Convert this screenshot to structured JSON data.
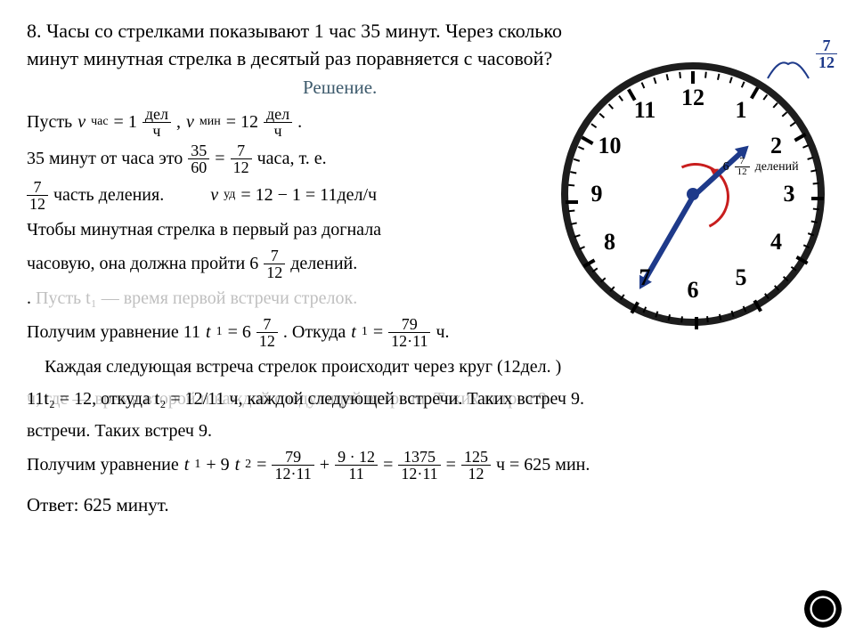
{
  "problem": {
    "number": "8.",
    "text_line1": "Часы со стрелками показывают 1 час 35 минут. Через сколько",
    "text_line2": "минут минутная стрелка в десятый раз поравняется с часовой?"
  },
  "solution_title": "Решение.",
  "lines": {
    "l1a": "Пусть ",
    "l1_vchas": "v",
    "l1_chas_sub": "час",
    "l1_eq1": " = 1",
    "l1_unit1_n": "дел",
    "l1_unit1_d": "ч",
    "l1_comma": " , ",
    "l1_vmin": "v",
    "l1_min_sub": "мин",
    "l1_eq2": " = 12",
    "l1_unit2_n": "дел",
    "l1_unit2_d": "ч",
    "l1_dot": " .",
    "l2a": "35 минут от часа это ",
    "l2_f1n": "35",
    "l2_f1d": "60",
    "l2_eq": " = ",
    "l2_f2n": "7",
    "l2_f2d": "12",
    "l2b": " часа, т. е.",
    "l3_fn": "7",
    "l3_fd": "12",
    "l3b": " часть деления.",
    "l3c": "v",
    "l3c_sub": "уд",
    "l3c_eq": " = 12 − 1 = 11дел/ч",
    "l4": "Чтобы минутная стрелка в первый раз догнала",
    "l5a": "часовую, она должна пройти 6",
    "l5_fn": "7",
    "l5_fd": "12",
    "l5b": " делений.",
    "l6_ghost": "Пусть t₁ — время первой встречи стрелок.",
    "l6_dot": ".",
    "l7a": "Получим уравнение 11",
    "l7_t": "t",
    "l7_sub": "1",
    "l7_eq": " = 6 ",
    "l7_fn": "7",
    "l7_fd": "12",
    "l7_dot": ".   Откуда ",
    "l7_t2": "t",
    "l7_sub2": "1",
    "l7_eq2": " = ",
    "l7_f2n": "79",
    "l7_f2d": "12·11",
    "l7_end": " ч.",
    "l8a": "Каждая следующая встреча стрелок происходит через круг (12дел. )",
    "l9_ghost": "ч, где — время второй и каждой следующей встречи. Таких встреч 9.",
    "l9_top": "11t₂ = 12, откуда t₂ = 12/11 ч, каждой следующей встречи. Таких встреч 9.",
    "l9b": "встречи. Таких встреч 9.",
    "l10a": "Получим уравнение ",
    "l10_t1": "t",
    "l10_s1": "1",
    "l10_plus": " + 9",
    "l10_t2": "t",
    "l10_s2": "2",
    "l10_eq": " = ",
    "l10_f1n": "79",
    "l10_f1d": "12·11",
    "l10_pl2": " + ",
    "l10_f2n": "9 · 12",
    "l10_f2d": "11",
    "l10_eq2": " = ",
    "l10_f3n": "1375",
    "l10_f3d": "12·11",
    "l10_eq3": " = ",
    "l10_f4n": "125",
    "l10_f4d": "12",
    "l10_end": " ч = 625 мин.",
    "answer": "Ответ: 625 минут."
  },
  "clock": {
    "numbers": [
      "12",
      "1",
      "2",
      "3",
      "4",
      "5",
      "6",
      "7",
      "8",
      "9",
      "10",
      "11"
    ],
    "hour_angle_deg": 47.5,
    "minute_angle_deg": 210,
    "inner_label_prefix": "6",
    "inner_label_fn": "7",
    "inner_label_fd": "12",
    "inner_label_suffix": " делений",
    "brace_fn": "7",
    "brace_fd": "12",
    "face_color": "#ffffff",
    "border_color": "#1d1d1d",
    "hand_color": "#1e3a8a",
    "arc_color": "#c81e1e"
  }
}
